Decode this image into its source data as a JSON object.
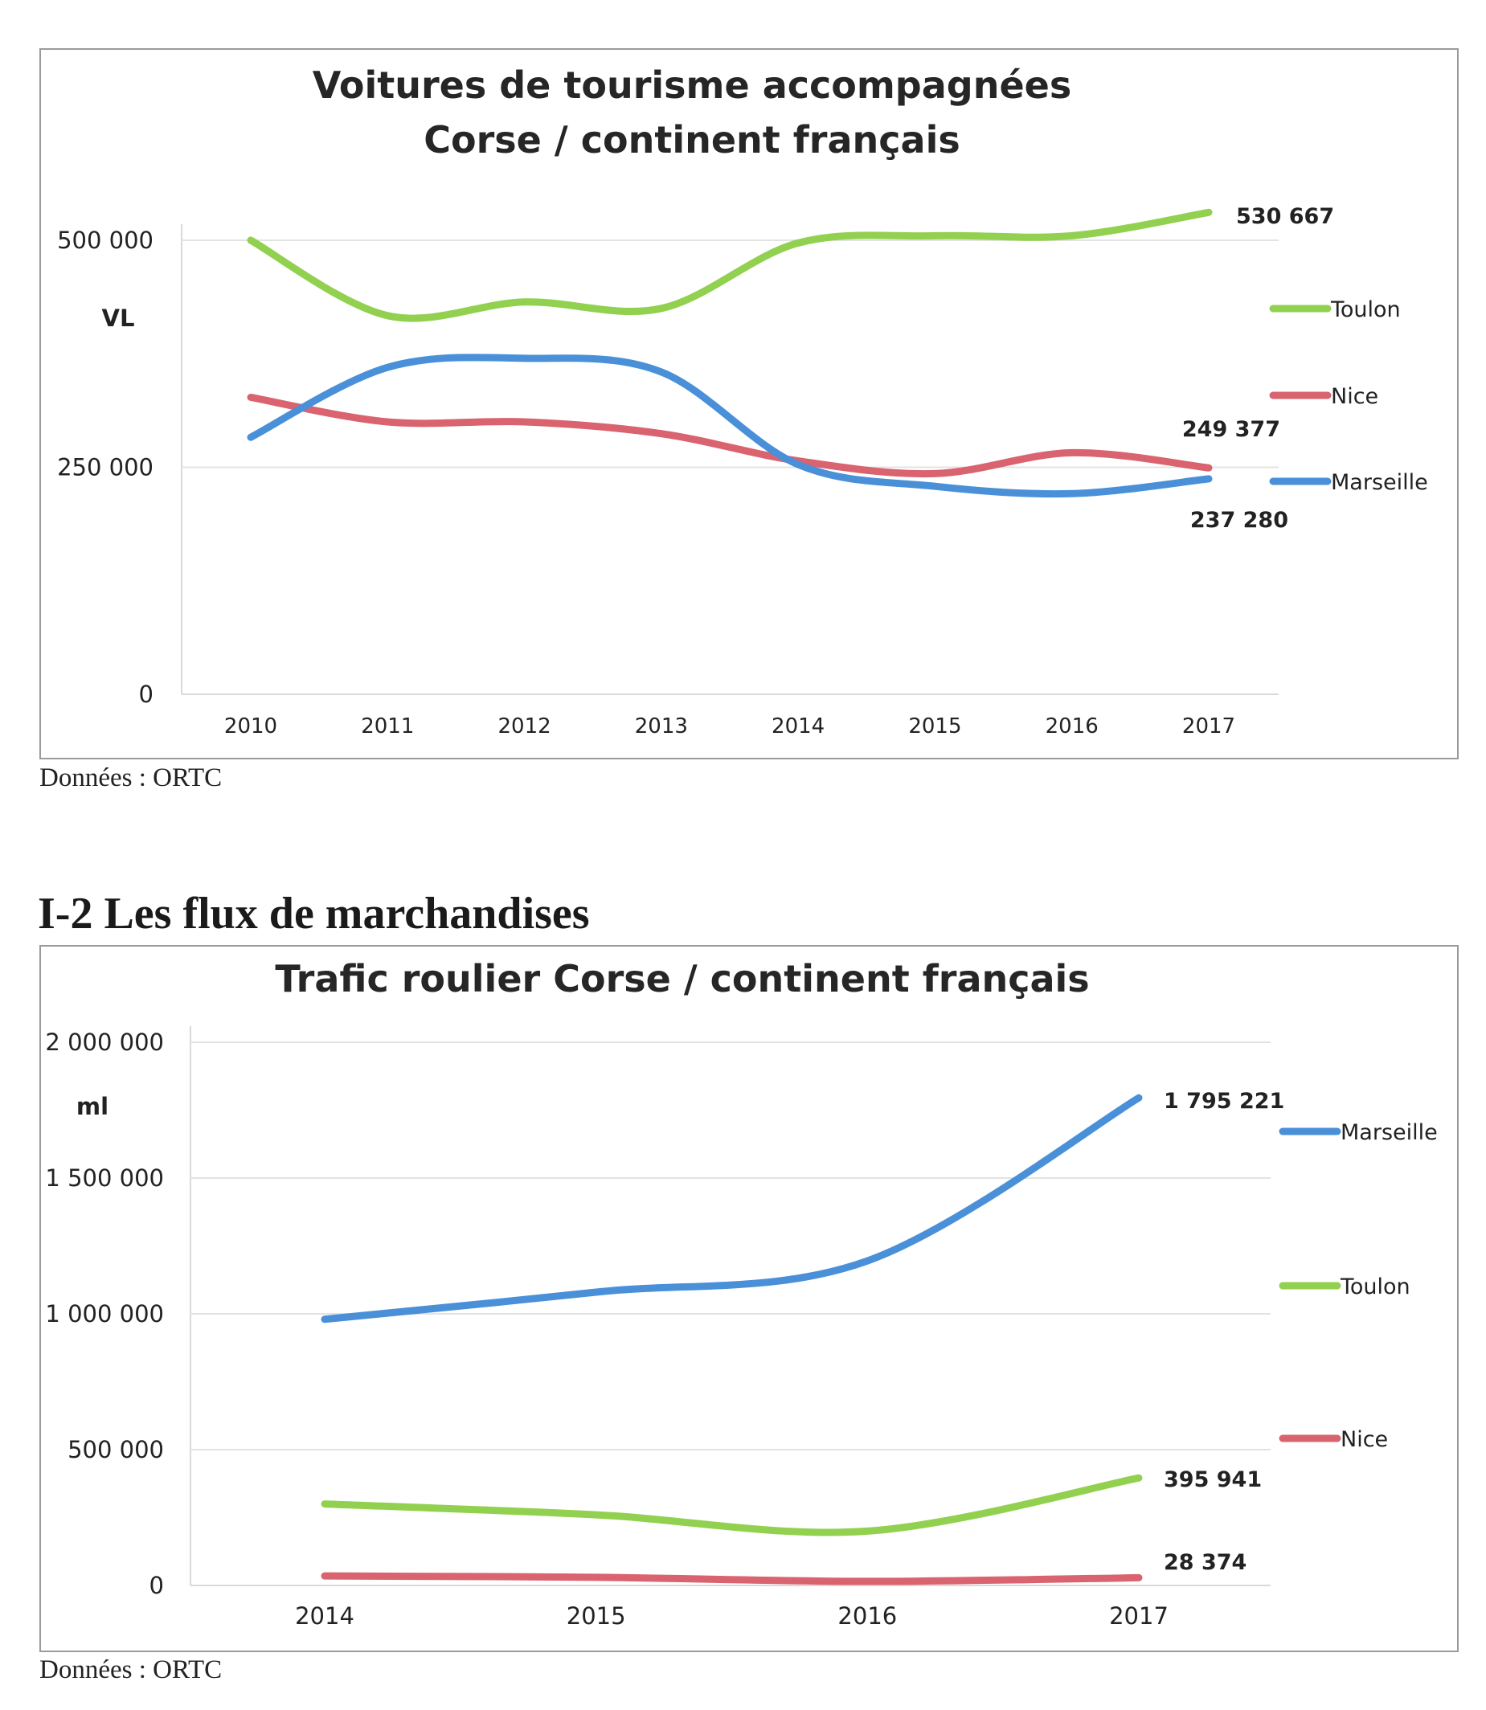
{
  "section_heading": "I-2  Les flux de marchandises",
  "chart_data": [
    {
      "type": "line",
      "title_lines": [
        "Voitures de tourisme accompagnées",
        "Corse / continent français"
      ],
      "unit_label": "VL",
      "ylim": [
        0,
        500000
      ],
      "y_ticks": [
        0,
        250000,
        500000
      ],
      "y_tick_labels": [
        "0",
        "250 000",
        "500 000"
      ],
      "grid": true,
      "legend_position": "right",
      "x": [
        2010,
        2011,
        2012,
        2013,
        2014,
        2015,
        2016,
        2017
      ],
      "x_labels": [
        "2010",
        "2011",
        "2012",
        "2013",
        "2014",
        "2015",
        "2016",
        "2017"
      ],
      "series": [
        {
          "name": "Toulon",
          "color": "#92d050",
          "values": [
            500000,
            417000,
            432000,
            425000,
            497000,
            505000,
            505000,
            530667
          ]
        },
        {
          "name": "Nice",
          "color": "#d9636e",
          "values": [
            327000,
            300000,
            300000,
            287000,
            257000,
            243000,
            266000,
            249377
          ]
        },
        {
          "name": "Marseille",
          "color": "#4a90d9",
          "values": [
            283000,
            360000,
            370000,
            355000,
            253000,
            229000,
            221000,
            237280
          ]
        }
      ],
      "annotations": [
        {
          "series": "Toulon",
          "text": "530 667"
        },
        {
          "series": "Nice",
          "text": "249 377"
        },
        {
          "series": "Marseille",
          "text": "237 280"
        }
      ],
      "source": "Données : ORTC"
    },
    {
      "type": "line",
      "title_lines": [
        "Trafic roulier Corse / continent français"
      ],
      "unit_label": "ml",
      "ylim": [
        0,
        2000000
      ],
      "y_ticks": [
        0,
        500000,
        1000000,
        1500000,
        2000000
      ],
      "y_tick_labels": [
        "0",
        "500 000",
        "1 000 000",
        "1 500 000",
        "2 000 000"
      ],
      "grid": true,
      "legend_position": "right",
      "x": [
        2014,
        2015,
        2016,
        2017
      ],
      "x_labels": [
        "2014",
        "2015",
        "2016",
        "2017"
      ],
      "series": [
        {
          "name": "Marseille",
          "color": "#4a90d9",
          "values": [
            980000,
            1080000,
            1195000,
            1795221
          ]
        },
        {
          "name": "Toulon",
          "color": "#92d050",
          "values": [
            300000,
            260000,
            200000,
            395941
          ]
        },
        {
          "name": "Nice",
          "color": "#d9636e",
          "values": [
            35000,
            30000,
            15000,
            28374
          ]
        }
      ],
      "annotations": [
        {
          "series": "Marseille",
          "text": "1 795 221"
        },
        {
          "series": "Toulon",
          "text": "395 941"
        },
        {
          "series": "Nice",
          "text": "28 374"
        }
      ],
      "source": "Données : ORTC"
    }
  ]
}
